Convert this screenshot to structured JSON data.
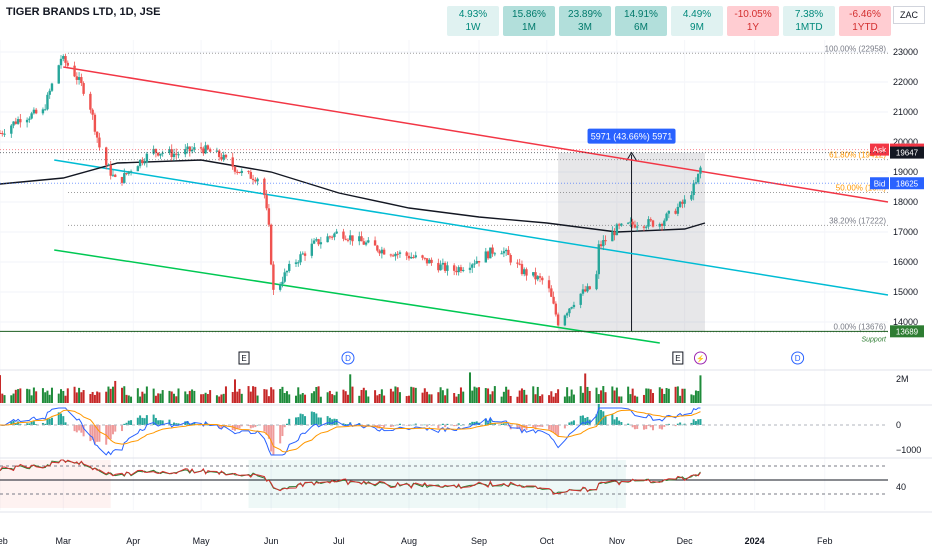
{
  "header": {
    "title": "TIGER BRANDS LTD, 1D, JSE",
    "currency": "ZAC"
  },
  "performance": [
    {
      "value": "4.93%",
      "period": "1W",
      "tone": "pos-light"
    },
    {
      "value": "15.86%",
      "period": "1M",
      "tone": "pos"
    },
    {
      "value": "23.89%",
      "period": "3M",
      "tone": "pos"
    },
    {
      "value": "14.91%",
      "period": "6M",
      "tone": "pos"
    },
    {
      "value": "4.49%",
      "period": "9M",
      "tone": "pos-light"
    },
    {
      "value": "-10.05%",
      "period": "1Y",
      "tone": "neg"
    },
    {
      "value": "7.38%",
      "period": "1MTD",
      "tone": "pos-light"
    },
    {
      "value": "-6.46%",
      "period": "1YTD",
      "tone": "neg"
    }
  ],
  "colors": {
    "up": "#26a69a",
    "down": "#ef5350",
    "upVolume": "#1e8b3a",
    "downVolume": "#c62828",
    "redChannel": "#f23645",
    "cyanChannel": "#00bcd4",
    "greenChannel": "#00c853",
    "movingAverage": "#131722",
    "macd": "#2962ff",
    "signal": "#ff9800",
    "stoch": "#2e7d32",
    "stochSignal": "#d32f2f",
    "posLight": "#e0f2f1",
    "pos": "#b2dfdb",
    "neg": "#ffcdd2"
  },
  "chart_data": {
    "type": "candlestick",
    "symbol": "TIGER BRANDS LTD",
    "interval": "1D",
    "exchange": "JSE",
    "x_range": [
      "2023-02-01",
      "2024-02-29"
    ],
    "ylim": [
      13300,
      23400
    ],
    "x_ticks": [
      "Feb",
      "Mar",
      "Apr",
      "May",
      "Jun",
      "Jul",
      "Aug",
      "Sep",
      "Oct",
      "Nov",
      "Dec",
      "2024",
      "Feb"
    ],
    "y_ticks": [
      14000,
      15000,
      16000,
      17000,
      18000,
      19000,
      20000,
      21000,
      22000,
      23000
    ],
    "price_path": [
      [
        "2023-02-01",
        20300
      ],
      [
        "2023-02-10",
        20800
      ],
      [
        "2023-02-20",
        21000
      ],
      [
        "2023-02-28",
        22800
      ],
      [
        "2023-03-05",
        22400
      ],
      [
        "2023-03-12",
        21500
      ],
      [
        "2023-03-18",
        19500
      ],
      [
        "2023-03-25",
        18600
      ],
      [
        "2023-04-01",
        19200
      ],
      [
        "2023-04-10",
        19700
      ],
      [
        "2023-04-20",
        19600
      ],
      [
        "2023-05-01",
        19800
      ],
      [
        "2023-05-10",
        19500
      ],
      [
        "2023-05-20",
        18900
      ],
      [
        "2023-05-28",
        18800
      ],
      [
        "2023-05-31",
        17100
      ],
      [
        "2023-06-02",
        15000
      ],
      [
        "2023-06-10",
        15900
      ],
      [
        "2023-06-20",
        16600
      ],
      [
        "2023-07-01",
        17000
      ],
      [
        "2023-07-10",
        16700
      ],
      [
        "2023-07-20",
        16400
      ],
      [
        "2023-08-01",
        16200
      ],
      [
        "2023-08-10",
        16000
      ],
      [
        "2023-08-20",
        15700
      ],
      [
        "2023-09-01",
        16100
      ],
      [
        "2023-09-10",
        16500
      ],
      [
        "2023-09-20",
        15700
      ],
      [
        "2023-10-01",
        15300
      ],
      [
        "2023-10-06",
        14000
      ],
      [
        "2023-10-15",
        14900
      ],
      [
        "2023-10-20",
        15100
      ],
      [
        "2023-10-22",
        14600
      ],
      [
        "2023-10-24",
        16500
      ],
      [
        "2023-11-01",
        17100
      ],
      [
        "2023-11-10",
        17300
      ],
      [
        "2023-11-20",
        17300
      ],
      [
        "2023-12-01",
        18000
      ],
      [
        "2023-12-06",
        18600
      ],
      [
        "2023-12-10",
        19647
      ]
    ],
    "moving_average": [
      [
        "2023-02-01",
        18600
      ],
      [
        "2023-03-01",
        18800
      ],
      [
        "2023-03-25",
        19300
      ],
      [
        "2023-05-01",
        19400
      ],
      [
        "2023-06-01",
        19000
      ],
      [
        "2023-07-01",
        18300
      ],
      [
        "2023-08-01",
        17800
      ],
      [
        "2023-09-01",
        17500
      ],
      [
        "2023-10-01",
        17300
      ],
      [
        "2023-11-01",
        17000
      ],
      [
        "2023-12-01",
        17100
      ],
      [
        "2023-12-10",
        17300
      ]
    ],
    "channels": [
      {
        "points": [
          [
            "2023-03-01",
            22500
          ],
          [
            "2024-02-29",
            18000
          ]
        ],
        "color": "redChannel"
      },
      {
        "points": [
          [
            "2023-02-25",
            19400
          ],
          [
            "2024-02-29",
            14900
          ]
        ],
        "color": "cyanChannel"
      },
      {
        "points": [
          [
            "2023-02-25",
            16400
          ],
          [
            "2023-11-20",
            13300
          ]
        ],
        "color": "greenChannel"
      }
    ],
    "fib_levels": [
      {
        "label": "100.00% (22958)",
        "value": 22958
      },
      {
        "label": "61.80% (19412)",
        "value": 19412
      },
      {
        "label": "50.00% (18...)",
        "value": 18317
      },
      {
        "label": "38.20% (17222)",
        "value": 17222
      },
      {
        "label": "0.00% (13676)",
        "value": 13676
      }
    ],
    "measure": {
      "label": "5971 (43.66%) 5971",
      "x_from": "2023-10-06",
      "x_to": "2023-12-10",
      "y_from": 13676,
      "y_to": 19647
    },
    "price_tags": [
      {
        "tag": "Ask",
        "value": "19747"
      },
      {
        "tag": "",
        "value": "19647"
      },
      {
        "tag": "Bid",
        "value": "18625"
      }
    ],
    "support": {
      "value": 13689,
      "label": "Support"
    },
    "events": [
      {
        "date": "2023-05-20",
        "kind": "E"
      },
      {
        "date": "2023-07-05",
        "kind": "D"
      },
      {
        "date": "2023-11-28",
        "kind": "E"
      },
      {
        "date": "2023-12-08",
        "kind": "S"
      },
      {
        "date": "2024-01-20",
        "kind": "D"
      }
    ],
    "volume_axis": [
      "2M"
    ],
    "macd_axis": [
      "0",
      "−1000"
    ],
    "stoch_axis": [
      "40"
    ]
  }
}
